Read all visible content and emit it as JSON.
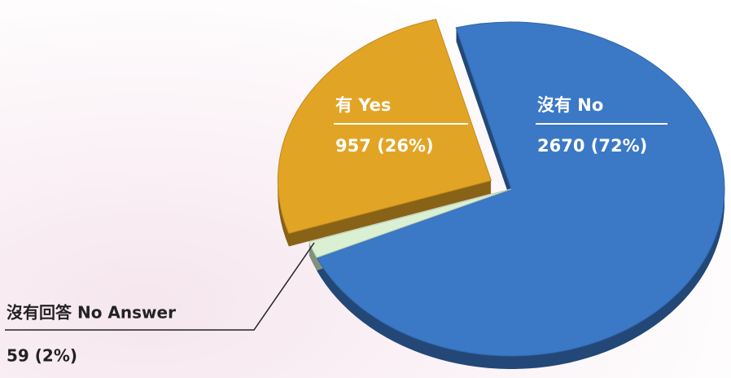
{
  "chart_data": {
    "type": "pie",
    "categories": [
      "沒有 No",
      "沒有回答 No Answer",
      "有 Yes"
    ],
    "values": [
      2670,
      59,
      957
    ],
    "value_labels": [
      "2670 (72%)",
      "59 (2%)",
      "957 (26%)"
    ],
    "colors": [
      "#3b78c6",
      "#d9f0d2",
      "#e2a424"
    ]
  }
}
